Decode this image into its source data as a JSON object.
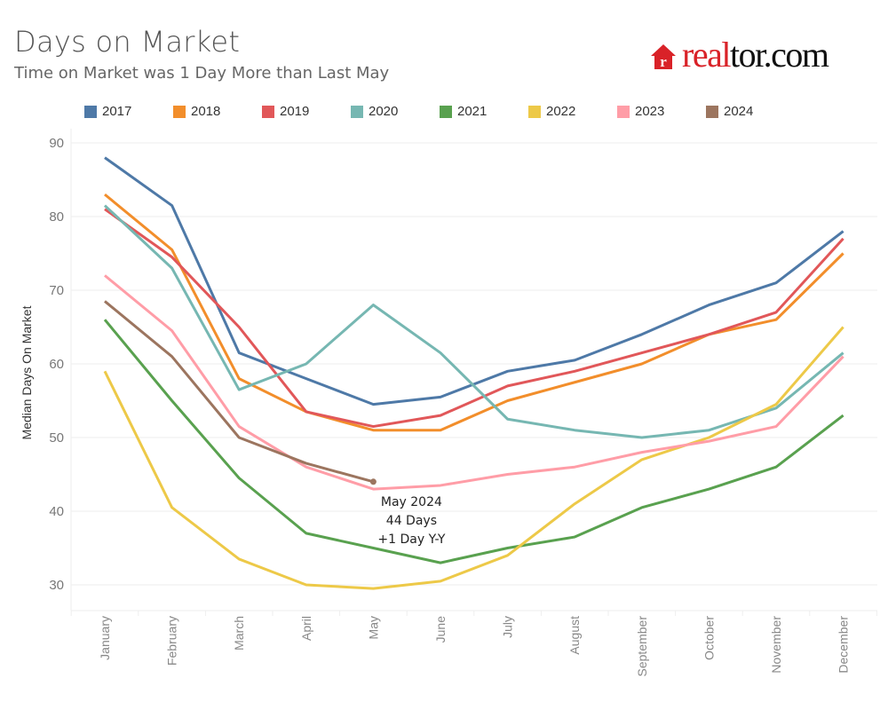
{
  "header": {
    "title": "Days on Market",
    "subtitle": "Time on Market was 1 Day More than Last May"
  },
  "logo": {
    "icon": "house-r-icon",
    "text_red": "real",
    "text_black": "tor.com",
    "brand_color": "#d92228"
  },
  "chart_data": {
    "type": "line",
    "title": "Days on Market",
    "subtitle": "Time on Market was 1 Day More than Last May",
    "xlabel": "",
    "ylabel": "Median Days On Market",
    "ylim": [
      26,
      92
    ],
    "yticks": [
      30,
      40,
      50,
      60,
      70,
      80,
      90
    ],
    "grid": true,
    "legend_position": "top",
    "categories": [
      "January",
      "February",
      "March",
      "April",
      "May",
      "June",
      "July",
      "August",
      "September",
      "October",
      "November",
      "December"
    ],
    "series": [
      {
        "name": "2017",
        "color": "#4e79a7",
        "values": [
          88,
          81.5,
          61.5,
          58,
          54.5,
          55.5,
          59,
          60.5,
          64,
          68,
          71,
          78
        ]
      },
      {
        "name": "2018",
        "color": "#f28e2b",
        "values": [
          83,
          75.5,
          58,
          53.5,
          51,
          51,
          55,
          57.5,
          60,
          64,
          66,
          75
        ]
      },
      {
        "name": "2019",
        "color": "#e15759",
        "values": [
          81,
          74.5,
          65,
          53.5,
          51.5,
          53,
          57,
          59,
          61.5,
          64,
          67,
          77
        ]
      },
      {
        "name": "2020",
        "color": "#76b7b2",
        "values": [
          81.5,
          73,
          56.5,
          60,
          68,
          61.5,
          52.5,
          51,
          50,
          51,
          54,
          61.5
        ]
      },
      {
        "name": "2021",
        "color": "#59a14f",
        "values": [
          66,
          55,
          44.5,
          37,
          35,
          33,
          35,
          36.5,
          40.5,
          43,
          46,
          53
        ]
      },
      {
        "name": "2022",
        "color": "#edc948",
        "values": [
          59,
          40.5,
          33.5,
          30,
          29.5,
          30.5,
          34,
          41,
          47,
          50,
          54.5,
          65
        ]
      },
      {
        "name": "2023",
        "color": "#ff9da7",
        "values": [
          72,
          64.5,
          51.5,
          46,
          43,
          43.5,
          45,
          46,
          48,
          49.5,
          51.5,
          61
        ]
      },
      {
        "name": "2024",
        "color": "#9c755f",
        "values": [
          68.5,
          61,
          50,
          46.5,
          44
        ]
      }
    ],
    "annotation": {
      "series": "2024",
      "category": "May",
      "lines": [
        "May 2024",
        "44 Days",
        "+1 Day Y-Y"
      ]
    }
  }
}
